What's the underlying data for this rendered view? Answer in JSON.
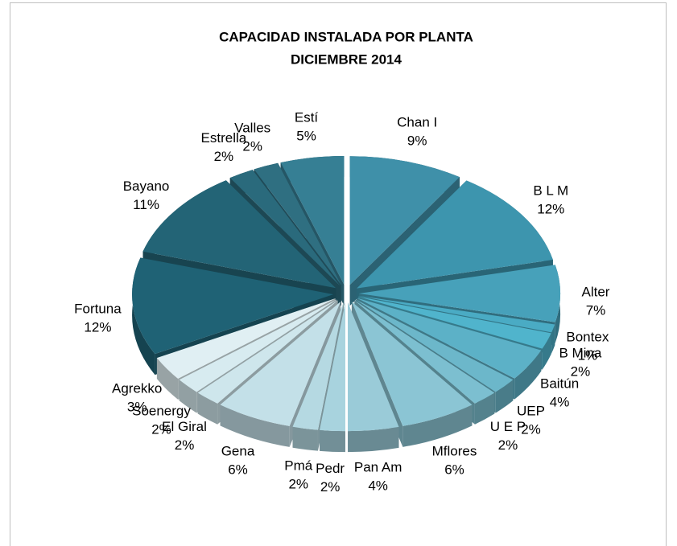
{
  "chart_data": {
    "type": "pie",
    "title": "CAPACIDAD INSTALADA POR PLANTA",
    "subtitle": "DICIEMBRE 2014",
    "categories": [
      "Chan I",
      "B L M",
      "Alter",
      "Bontex",
      "B Mina",
      "Baitún",
      "UEP",
      "U E P",
      "Mflores",
      "Pan Am",
      "Pedr",
      "Pmá",
      "Gena",
      "El Giral",
      "Soenergy",
      "Agrekko",
      "Fortuna",
      "Bayano",
      "Estrella",
      "Valles",
      "Estí"
    ],
    "values": [
      9,
      12,
      7,
      1,
      2,
      4,
      2,
      2,
      6,
      4,
      2,
      2,
      6,
      2,
      2,
      3,
      12,
      11,
      2,
      2,
      5
    ],
    "value_labels": [
      "9%",
      "12%",
      "7%",
      "1%",
      "2%",
      "4%",
      "2%",
      "2%",
      "6%",
      "4%",
      "2%",
      "2%",
      "6%",
      "2%",
      "2%",
      "3%",
      "12%",
      "11%",
      "2%",
      "2%",
      "5%"
    ],
    "colors": [
      "#3f90a9",
      "#3d95ae",
      "#47a1ba",
      "#4aabc4",
      "#50b4cc",
      "#5cb1c7",
      "#6cb7ca",
      "#7cbfd0",
      "#8bc5d4",
      "#9acbd8",
      "#a8d3de",
      "#b5d9e2",
      "#c3e0e8",
      "#cee6ec",
      "#d7ebf0",
      "#e0eff3",
      "#1f6275",
      "#236476",
      "#2a6a7c",
      "#2f6f81",
      "#367f94"
    ]
  }
}
